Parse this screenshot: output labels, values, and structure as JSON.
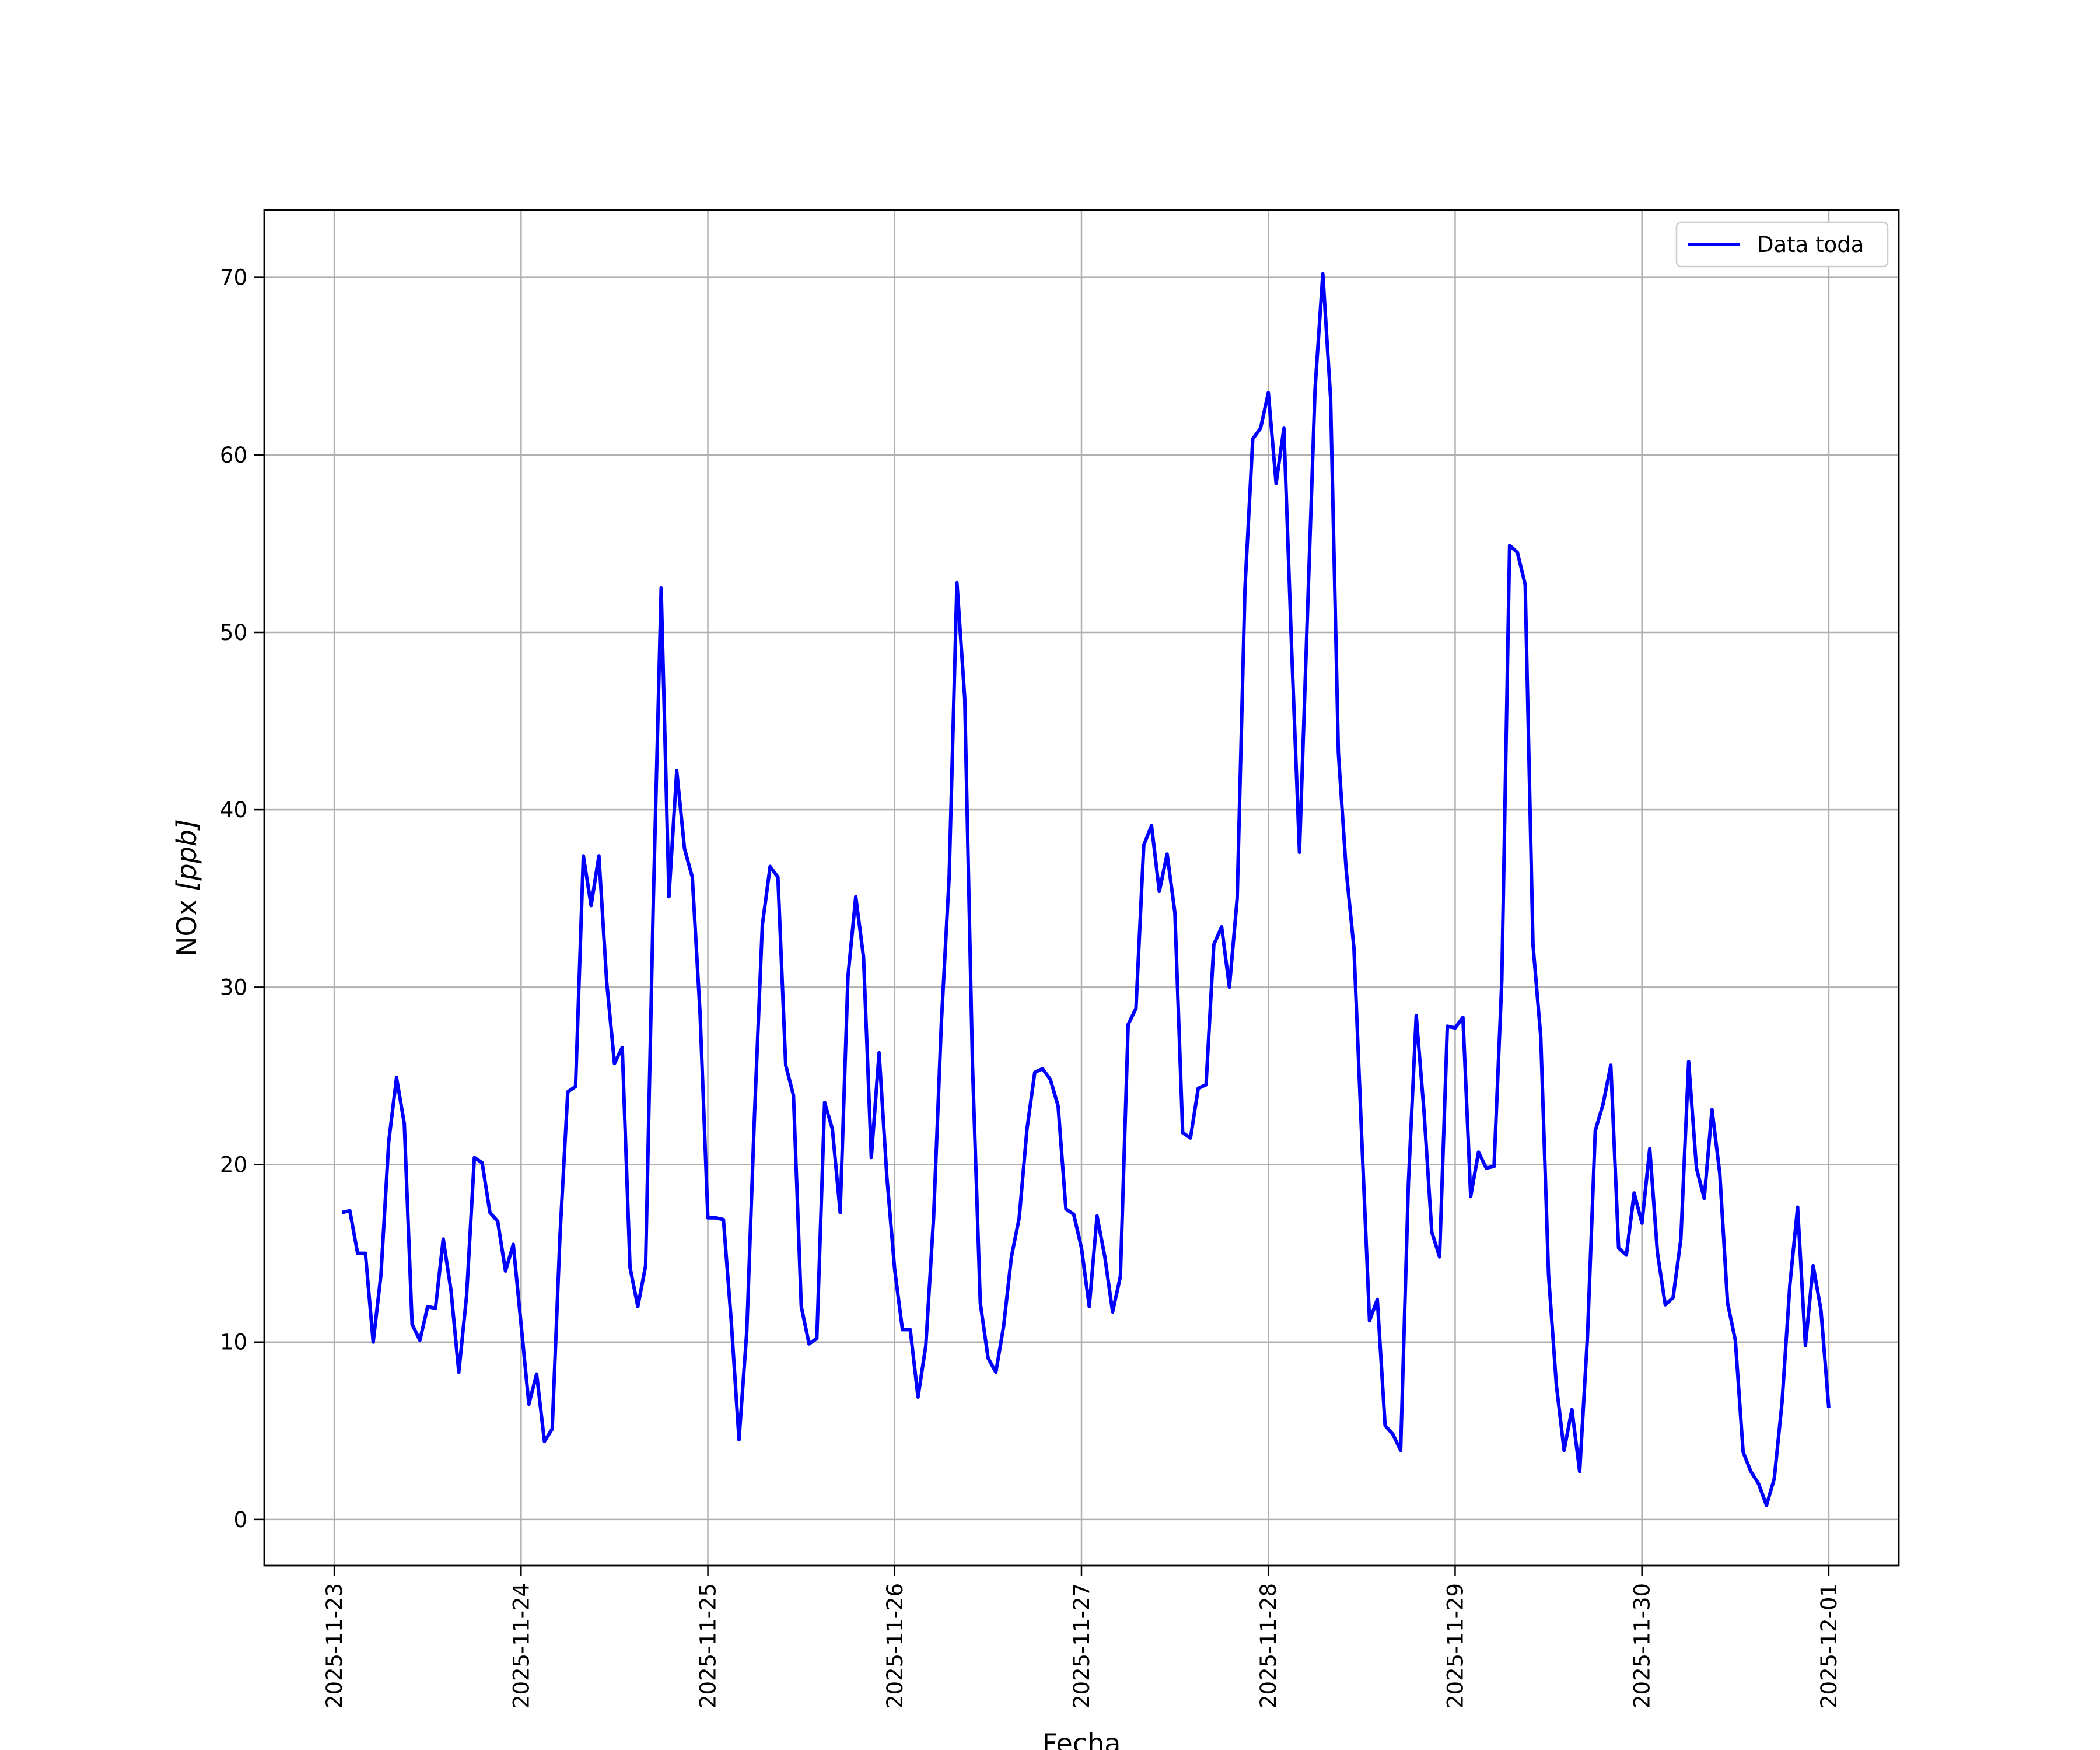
{
  "chart_data": {
    "type": "line",
    "title": "",
    "xlabel": "Fecha",
    "ylabel_prefix": "NOx ",
    "ylabel_unit": "[ppb]",
    "x_ticks": [
      "2025-11-23",
      "2025-11-24",
      "2025-11-25",
      "2025-11-26",
      "2025-11-27",
      "2025-11-28",
      "2025-11-29",
      "2025-11-30",
      "2025-12-01"
    ],
    "y_ticks": [
      "0",
      "10",
      "20",
      "30",
      "40",
      "50",
      "60",
      "70"
    ],
    "xlim": [
      "2025-11-22T15:00",
      "2025-12-01T09:00"
    ],
    "ylim": [
      -2.6,
      73.8
    ],
    "grid": true,
    "legend_position": "upper-right",
    "series": [
      {
        "name": "Data toda",
        "color": "#0000ff",
        "x_start": "2025-11-23T01:00",
        "x_step_hours": 1,
        "values": [
          17.3,
          17.4,
          15.0,
          15.0,
          10.0,
          13.8,
          21.3,
          24.9,
          22.3,
          11.0,
          10.1,
          12.0,
          11.9,
          15.8,
          12.9,
          8.3,
          12.6,
          20.4,
          20.1,
          17.3,
          16.8,
          14.0,
          15.5,
          11.0,
          6.5,
          8.2,
          4.4,
          5.1,
          16.0,
          24.1,
          24.4,
          37.4,
          34.6,
          37.4,
          30.3,
          25.7,
          26.6,
          14.2,
          12.0,
          14.3,
          35.0,
          52.5,
          35.1,
          42.2,
          37.8,
          36.2,
          28.5,
          17.0,
          17.0,
          16.9,
          11.2,
          4.5,
          10.6,
          22.9,
          33.5,
          36.8,
          36.2,
          25.6,
          23.9,
          12.0,
          9.9,
          10.2,
          23.5,
          22.0,
          17.3,
          30.6,
          35.1,
          31.7,
          20.4,
          26.3,
          19.3,
          14.1,
          10.7,
          10.7,
          6.9,
          9.8,
          17.0,
          28.0,
          36.2,
          52.8,
          46.3,
          25.6,
          12.2,
          9.1,
          8.3,
          10.9,
          14.8,
          17.0,
          22.0,
          25.2,
          25.4,
          24.8,
          23.3,
          17.5,
          17.2,
          15.3,
          12.0,
          17.1,
          14.8,
          11.7,
          13.7,
          27.9,
          28.8,
          38.0,
          39.1,
          35.4,
          37.5,
          34.2,
          21.8,
          21.5,
          24.3,
          24.5,
          32.4,
          33.4,
          30.0,
          35.0,
          52.5,
          60.9,
          61.5,
          63.5,
          58.4,
          61.5,
          49.0,
          37.6,
          50.7,
          63.7,
          70.2,
          63.2,
          43.2,
          36.6,
          32.2,
          21.5,
          11.2,
          12.4,
          5.3,
          4.8,
          3.9,
          19.0,
          28.4,
          23.0,
          16.2,
          14.8,
          27.8,
          27.7,
          28.3,
          18.2,
          20.7,
          19.8,
          19.9,
          30.4,
          54.9,
          54.5,
          52.7,
          32.4,
          27.2,
          13.8,
          7.6,
          3.9,
          6.2,
          2.7,
          10.3,
          21.9,
          23.4,
          25.6,
          15.3,
          14.9,
          18.4,
          16.7,
          20.9,
          15.0,
          12.1,
          12.5,
          15.8,
          25.8,
          19.8,
          18.1,
          23.1,
          19.5,
          12.2,
          10.1,
          3.8,
          2.7,
          2.0,
          0.8,
          2.3,
          6.6,
          13.2,
          17.6,
          9.8,
          14.3,
          11.8,
          6.3
        ]
      }
    ]
  }
}
